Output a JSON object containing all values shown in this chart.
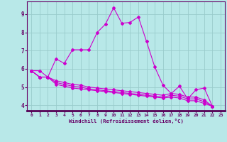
{
  "background_color": "#b8e8e8",
  "grid_color": "#99cccc",
  "line_color": "#cc00cc",
  "axis_color": "#660066",
  "xlim": [
    -0.5,
    23.5
  ],
  "ylim": [
    3.7,
    9.7
  ],
  "xticks": [
    0,
    1,
    2,
    3,
    4,
    5,
    6,
    7,
    8,
    9,
    10,
    11,
    12,
    13,
    14,
    15,
    16,
    17,
    18,
    19,
    20,
    21,
    22,
    23
  ],
  "yticks": [
    4,
    5,
    6,
    7,
    8,
    9
  ],
  "xlabel": "Windchill (Refroidissement éolien,°C)",
  "line1": [
    [
      0,
      5.9
    ],
    [
      1,
      5.9
    ],
    [
      2,
      5.55
    ],
    [
      3,
      6.55
    ],
    [
      4,
      6.3
    ],
    [
      5,
      7.05
    ],
    [
      6,
      7.05
    ],
    [
      7,
      7.05
    ],
    [
      8,
      8.0
    ],
    [
      9,
      8.45
    ],
    [
      10,
      9.35
    ],
    [
      11,
      8.5
    ],
    [
      12,
      8.55
    ],
    [
      13,
      8.85
    ],
    [
      14,
      7.5
    ],
    [
      15,
      6.1
    ],
    [
      16,
      5.1
    ],
    [
      17,
      4.65
    ],
    [
      18,
      5.05
    ],
    [
      19,
      4.35
    ],
    [
      20,
      4.85
    ],
    [
      21,
      4.95
    ],
    [
      22,
      3.95
    ]
  ],
  "line2": [
    [
      0,
      5.9
    ],
    [
      1,
      5.55
    ],
    [
      2,
      5.55
    ],
    [
      3,
      5.35
    ],
    [
      4,
      5.25
    ],
    [
      5,
      5.15
    ],
    [
      6,
      5.1
    ],
    [
      7,
      5.0
    ],
    [
      8,
      4.95
    ],
    [
      9,
      4.9
    ],
    [
      10,
      4.85
    ],
    [
      11,
      4.8
    ],
    [
      12,
      4.75
    ],
    [
      13,
      4.7
    ],
    [
      14,
      4.65
    ],
    [
      15,
      4.6
    ],
    [
      16,
      4.55
    ],
    [
      17,
      4.65
    ],
    [
      18,
      4.6
    ],
    [
      19,
      4.45
    ],
    [
      20,
      4.45
    ],
    [
      21,
      4.3
    ],
    [
      22,
      3.95
    ]
  ],
  "line3": [
    [
      0,
      5.9
    ],
    [
      1,
      5.55
    ],
    [
      2,
      5.55
    ],
    [
      3,
      5.25
    ],
    [
      4,
      5.15
    ],
    [
      5,
      5.05
    ],
    [
      6,
      5.0
    ],
    [
      7,
      4.9
    ],
    [
      8,
      4.85
    ],
    [
      9,
      4.8
    ],
    [
      10,
      4.75
    ],
    [
      11,
      4.7
    ],
    [
      12,
      4.65
    ],
    [
      13,
      4.6
    ],
    [
      14,
      4.55
    ],
    [
      15,
      4.5
    ],
    [
      16,
      4.45
    ],
    [
      17,
      4.55
    ],
    [
      18,
      4.5
    ],
    [
      19,
      4.35
    ],
    [
      20,
      4.35
    ],
    [
      21,
      4.2
    ],
    [
      22,
      3.95
    ]
  ],
  "line4": [
    [
      0,
      5.9
    ],
    [
      1,
      5.55
    ],
    [
      2,
      5.55
    ],
    [
      3,
      5.15
    ],
    [
      4,
      5.05
    ],
    [
      5,
      4.95
    ],
    [
      6,
      4.9
    ],
    [
      7,
      4.85
    ],
    [
      8,
      4.8
    ],
    [
      9,
      4.75
    ],
    [
      10,
      4.7
    ],
    [
      11,
      4.65
    ],
    [
      12,
      4.6
    ],
    [
      13,
      4.55
    ],
    [
      14,
      4.5
    ],
    [
      15,
      4.45
    ],
    [
      16,
      4.4
    ],
    [
      17,
      4.45
    ],
    [
      18,
      4.4
    ],
    [
      19,
      4.25
    ],
    [
      20,
      4.25
    ],
    [
      21,
      4.1
    ],
    [
      22,
      3.95
    ]
  ]
}
